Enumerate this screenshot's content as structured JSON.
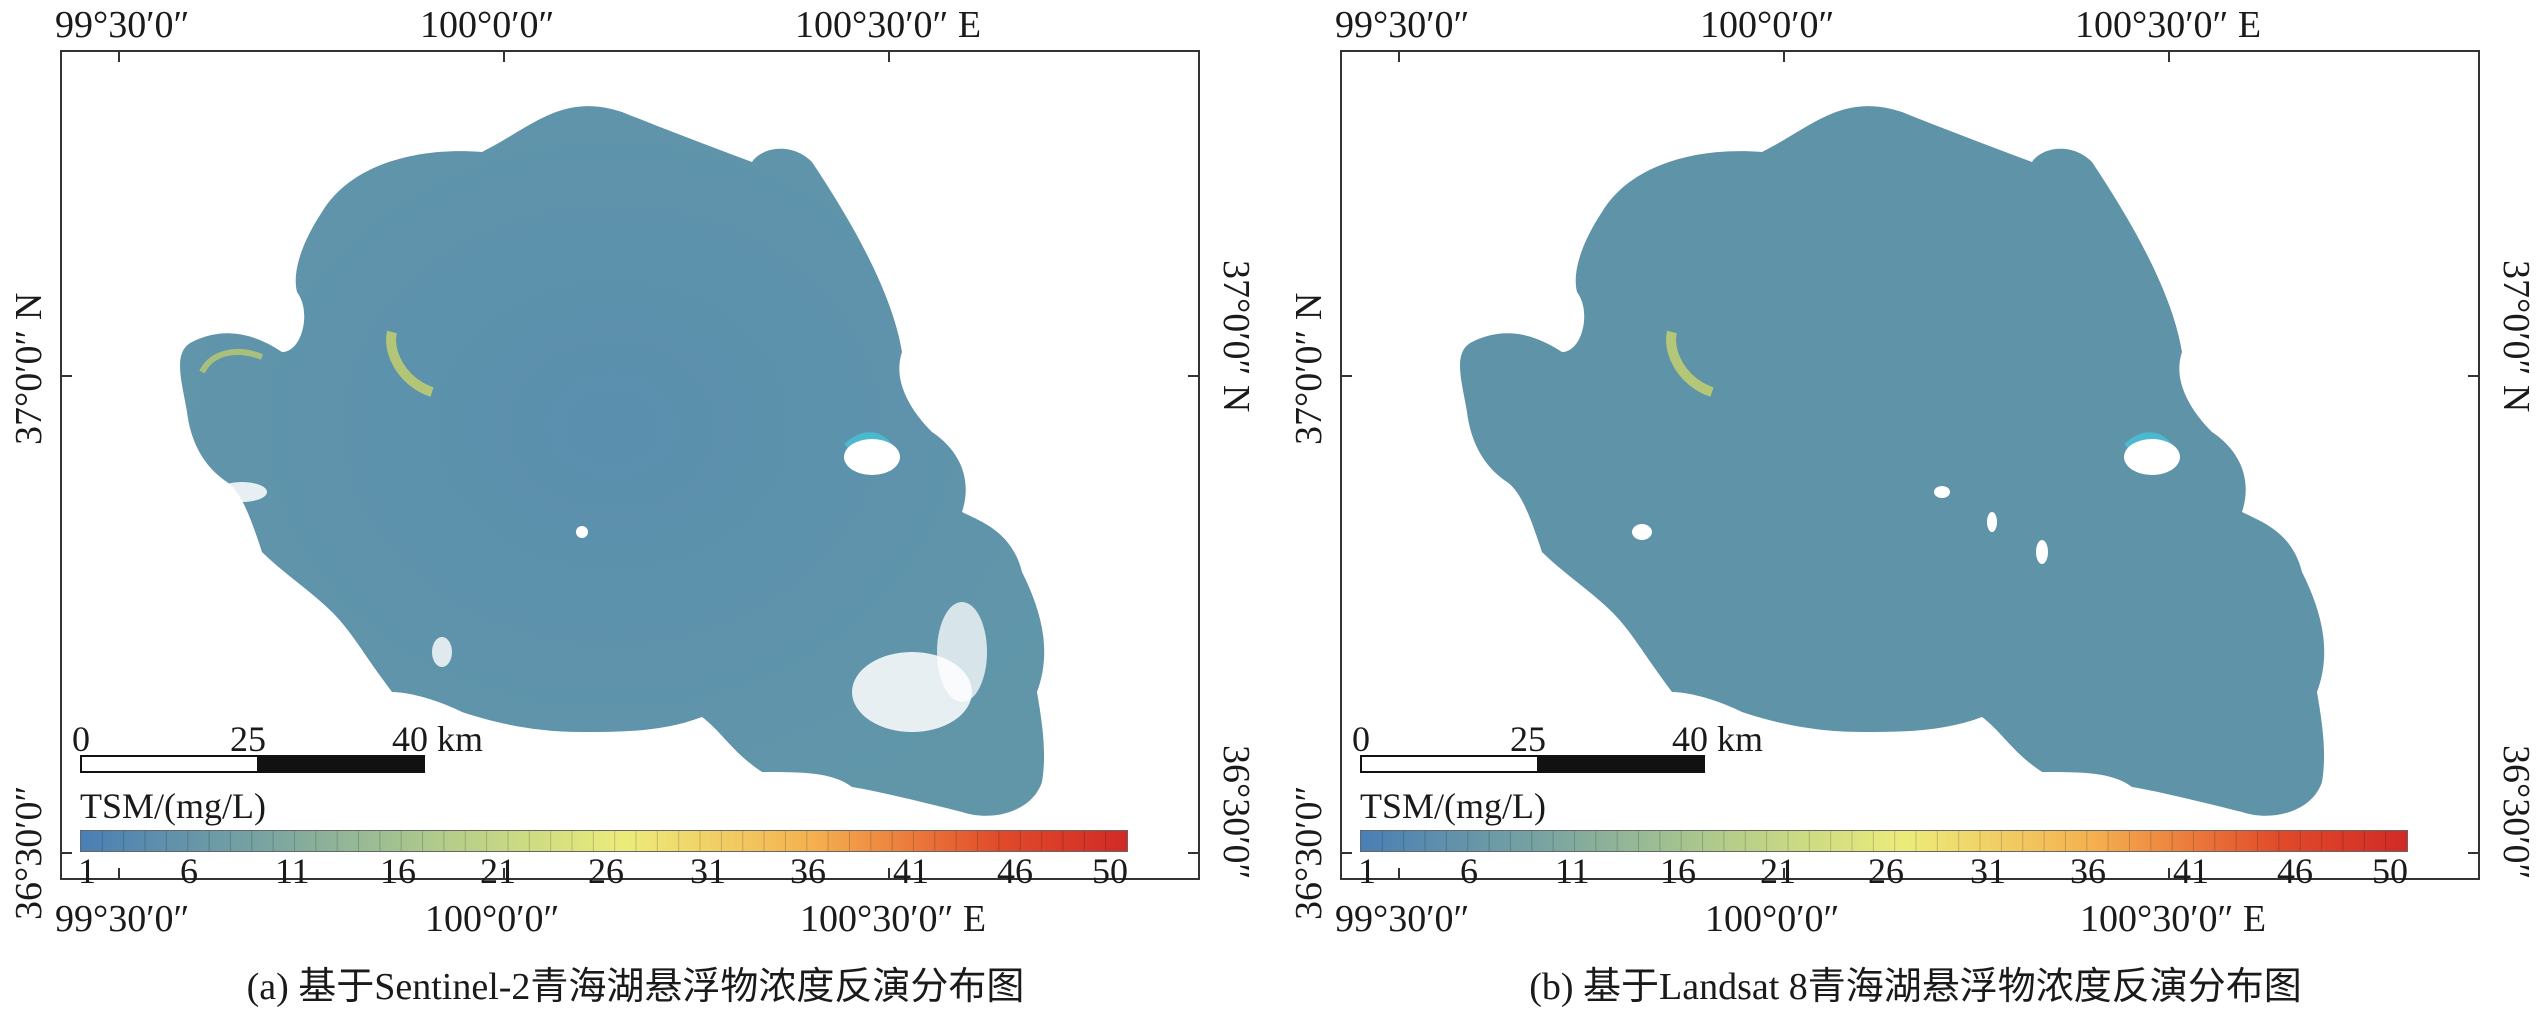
{
  "panels": [
    {
      "id": "a",
      "caption": "(a) 基于Sentinel-2青海湖悬浮物浓度反演分布图",
      "top_lon_labels": [
        "99°30′0″",
        "100°0′0″",
        "100°30′0″  E"
      ],
      "bottom_lon_labels": [
        "99°30′0″",
        "100°0′0″",
        "100°30′0″  E"
      ],
      "left_lat_labels": [
        "37°0′0″  N",
        "36°30′0″"
      ],
      "right_lat_labels": [
        "37°0′0″  N",
        "36°30′0″"
      ],
      "scale_bar": {
        "labels": [
          "0",
          "25",
          "40 km"
        ]
      },
      "legend": {
        "title": "TSM/(mg/L)",
        "ticks": [
          "1",
          "6",
          "11",
          "16",
          "21",
          "26",
          "31",
          "36",
          "41",
          "46",
          "50"
        ]
      }
    },
    {
      "id": "b",
      "caption": "(b) 基于Landsat 8青海湖悬浮物浓度反演分布图",
      "top_lon_labels": [
        "99°30′0″",
        "100°0′0″",
        "100°30′0″  E"
      ],
      "bottom_lon_labels": [
        "99°30′0″",
        "100°0′0″",
        "100°30′0″  E"
      ],
      "left_lat_labels": [
        "37°0′0″  N",
        "36°30′0″"
      ],
      "right_lat_labels": [
        "37°0′0″  N",
        "36°30′0″"
      ],
      "scale_bar": {
        "labels": [
          "0",
          "25",
          "40 km"
        ]
      },
      "legend": {
        "title": "TSM/(mg/L)",
        "ticks": [
          "1",
          "6",
          "11",
          "16",
          "21",
          "26",
          "31",
          "36",
          "41",
          "46",
          "50"
        ]
      }
    }
  ],
  "colors": {
    "lake_water": "#5b92ad",
    "shore_yellow": "#c9d36a",
    "shore_cyan": "#46c3d9",
    "colormap": [
      "#4a7fb5",
      "#7aa5a0",
      "#b4cd8a",
      "#ecec7a",
      "#f5b04f",
      "#e04a2a",
      "#d12a26"
    ]
  }
}
